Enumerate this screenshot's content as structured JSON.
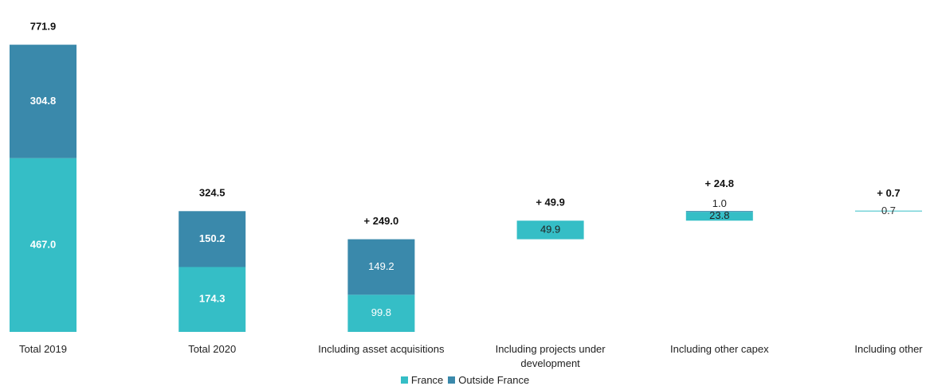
{
  "chart_data": {
    "type": "waterfall",
    "categories": [
      "Total 2019",
      "Total 2020",
      "Including asset acquisitions",
      "Including projects under development",
      "Including other capex",
      "Including other"
    ],
    "bar_kinds": [
      "total",
      "total",
      "delta",
      "delta",
      "delta",
      "delta"
    ],
    "series": [
      {
        "name": "France",
        "color": "#35bec6",
        "values": [
          467.0,
          174.3,
          99.8,
          49.9,
          23.8,
          0.7
        ],
        "value_labels": [
          "467.0",
          "174.3",
          "99.8",
          "49.9",
          "23.8",
          "0.7"
        ]
      },
      {
        "name": "Outside France",
        "color": "#3a89ab",
        "values": [
          304.8,
          150.2,
          149.2,
          null,
          1.0,
          null
        ],
        "value_labels": [
          "304.8",
          "150.2",
          "149.2",
          null,
          "1.0",
          null
        ]
      }
    ],
    "totals": [
      771.9,
      324.5,
      249.0,
      49.9,
      24.8,
      0.7
    ],
    "total_labels": [
      "771.9",
      "324.5",
      "+ 249.0",
      "+ 49.9",
      "+ 24.8",
      "+ 0.7"
    ],
    "ylim": [
      0,
      800
    ],
    "legend": "bottom"
  }
}
